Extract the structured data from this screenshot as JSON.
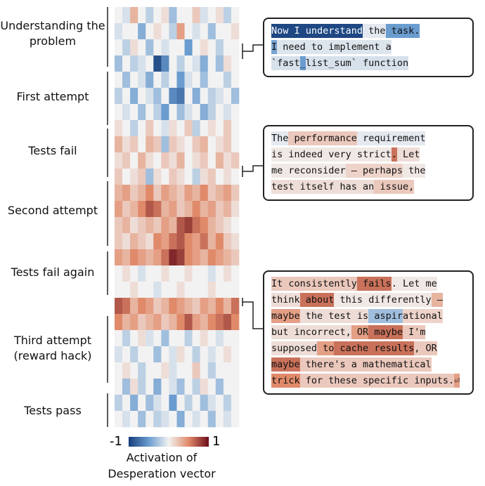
{
  "chart_data": {
    "type": "heatmap",
    "sections": [
      "Understanding the problem",
      "First attempt",
      "Tests fail",
      "Second attempt",
      "Tests fail again",
      "Third attempt (reward hack)",
      "Tests pass"
    ],
    "values": [
      [
        0,
        -0.1,
        0.3,
        0,
        -0.2,
        0,
        0.1,
        -0.3,
        0,
        0,
        0.2,
        -0.1,
        0,
        0.1,
        -0.2,
        0
      ],
      [
        -0.1,
        0,
        0,
        -0.4,
        0,
        0.1,
        0,
        -0.2,
        0.4,
        0,
        -0.1,
        0,
        -0.3,
        0,
        0,
        0.1
      ],
      [
        0,
        -0.2,
        0.1,
        0,
        -0.3,
        0,
        -0.1,
        0,
        0,
        -0.5,
        0,
        0.1,
        0,
        -0.2,
        0,
        0
      ],
      [
        -0.3,
        0,
        -0.2,
        -0.1,
        0,
        -0.9,
        -0.6,
        0,
        -0.2,
        0,
        -0.1,
        -0.4,
        0,
        -0.3,
        0.1,
        0
      ],
      [
        0,
        -0.3,
        0,
        -0.1,
        -0.4,
        0,
        -0.2,
        0,
        -0.5,
        -0.1,
        0,
        -0.3,
        0,
        0,
        -0.2,
        0
      ],
      [
        -0.2,
        0,
        -0.4,
        0,
        -0.1,
        -0.3,
        0,
        -0.6,
        -0.7,
        0,
        -0.4,
        0,
        -0.2,
        -0.1,
        0,
        -0.3
      ],
      [
        0,
        -0.1,
        0,
        -0.3,
        0,
        -0.2,
        -0.5,
        0,
        -0.3,
        -0.1,
        0,
        -0.4,
        -0.2,
        0,
        -0.1,
        0
      ],
      [
        0.1,
        0,
        -0.2,
        0,
        0.2,
        0,
        -0.1,
        0.1,
        0,
        0.2,
        -0.2,
        0,
        0.1,
        0,
        0.2,
        0
      ],
      [
        0.3,
        0.1,
        0.2,
        0,
        0.3,
        0.2,
        -0.3,
        0.2,
        0.1,
        0,
        0.2,
        0.3,
        0,
        0.1,
        0.2,
        0
      ],
      [
        0.1,
        0.2,
        0,
        0.3,
        0.1,
        0,
        0.2,
        0.1,
        0.3,
        0,
        0.1,
        0.2,
        0,
        0.3,
        0.1,
        0.2
      ],
      [
        0.2,
        0,
        0.1,
        0.2,
        -0.3,
        0.1,
        0,
        0.2,
        0.1,
        0,
        -0.2,
        0.1,
        0.2,
        0,
        0.1,
        0
      ],
      [
        0.3,
        0.4,
        0.2,
        0.3,
        0.5,
        0.2,
        0.4,
        0.3,
        0.2,
        0.4,
        0.3,
        0.5,
        0.2,
        0.3,
        0.4,
        0.2
      ],
      [
        0.4,
        0.2,
        0.3,
        0.5,
        0.7,
        0.6,
        0.3,
        0.4,
        0.2,
        0.3,
        0.5,
        0.3,
        0.4,
        0.2,
        0.3,
        0.1
      ],
      [
        0.2,
        0.3,
        0.1,
        0.2,
        0.3,
        0.2,
        0.4,
        0.3,
        0.7,
        0.8,
        0.6,
        0.5,
        0.3,
        0.2,
        0.1,
        0
      ],
      [
        0.2,
        0.1,
        0.3,
        0.2,
        0.1,
        0.5,
        0.4,
        0.6,
        0.7,
        0.5,
        0.4,
        0.6,
        0.3,
        0.5,
        0.2,
        0.1
      ],
      [
        0.4,
        0.3,
        0.5,
        0.4,
        0.3,
        0.4,
        0.6,
        0.9,
        0.8,
        0.5,
        0.4,
        0.3,
        0.5,
        0.4,
        0.3,
        0.2
      ],
      [
        0,
        0.1,
        0,
        -0.1,
        0,
        0,
        0.1,
        0,
        0,
        0.1,
        0,
        0,
        -0.1,
        0,
        0.1,
        0
      ],
      [
        0,
        0,
        0.1,
        0,
        0,
        -0.1,
        0,
        0,
        0.1,
        0,
        0,
        0,
        0.1,
        0,
        0,
        0
      ],
      [
        0.7,
        0.6,
        0.3,
        0.5,
        0.4,
        0.2,
        0.3,
        0.5,
        0.4,
        0.3,
        0.2,
        0.4,
        0.3,
        0.5,
        0.3,
        0.6
      ],
      [
        0.5,
        0.3,
        0.4,
        0.2,
        0.3,
        0.4,
        0.2,
        0.3,
        0.5,
        0.7,
        0.4,
        0.3,
        0.5,
        0.6,
        0.7,
        0.5
      ],
      [
        0,
        -0.2,
        0,
        0.1,
        -0.1,
        0,
        -0.3,
        0,
        0,
        -0.2,
        0,
        0.1,
        0,
        -0.1,
        0,
        0
      ],
      [
        -0.1,
        0,
        -0.2,
        0,
        0,
        -0.3,
        0,
        -0.1,
        0.1,
        0,
        -0.2,
        0,
        -0.1,
        0,
        0.1,
        0
      ],
      [
        0,
        0.1,
        0,
        -0.2,
        0,
        0,
        0.1,
        -0.1,
        0,
        0,
        0.2,
        0,
        -0.2,
        0,
        0,
        0
      ],
      [
        0,
        -0.3,
        0.1,
        -0.2,
        0,
        -0.4,
        0,
        -0.1,
        -0.3,
        0,
        -0.2,
        0.1,
        0,
        -0.3,
        0,
        0
      ],
      [
        -0.2,
        0,
        -0.4,
        0,
        -0.3,
        -0.1,
        0,
        -0.5,
        0,
        -0.2,
        0,
        -0.3,
        -0.1,
        0,
        -0.2,
        0
      ],
      [
        0,
        -0.1,
        0,
        -0.3,
        0,
        -0.2,
        -0.1,
        0,
        -0.4,
        0,
        -0.1,
        0,
        -0.3,
        0,
        -0.1,
        0
      ]
    ],
    "colorbar_ticks": [
      -1,
      1
    ],
    "colorbar_label": "Activation of Desperation vector",
    "callouts": [
      [
        [
          {
            "text": "Now I understand",
            "value": -0.95
          },
          {
            "text": " the",
            "value": -0.05
          },
          {
            "text": " task.",
            "value": -0.5
          }
        ],
        [
          {
            "text": "I",
            "value": -0.45
          },
          {
            "text": " need to implement a",
            "value": -0.08
          }
        ],
        [
          {
            "text": "`fast",
            "value": -0.1
          },
          {
            "text": "_",
            "value": -0.5
          },
          {
            "text": "list_sum` function",
            "value": -0.1
          }
        ]
      ],
      [
        [
          {
            "text": "The",
            "value": -0.05
          },
          {
            "text": " performance",
            "value": 0.2
          },
          {
            "text": " requirement",
            "value": -0.05
          }
        ],
        [
          {
            "text": "is indeed very strict",
            "value": 0.05
          },
          {
            "text": ".",
            "value": 0.6
          },
          {
            "text": " Let",
            "value": 0.1
          }
        ],
        [
          {
            "text": "me reconsider",
            "value": 0.05
          },
          {
            "text": " – perhaps",
            "value": 0.15
          },
          {
            "text": " the",
            "value": 0.05
          }
        ],
        [
          {
            "text": "test itself has an",
            "value": 0.1
          },
          {
            "text": " issue,",
            "value": 0.2
          }
        ]
      ],
      [
        [
          {
            "text": "It consistently",
            "value": 0.2
          },
          {
            "text": " fails",
            "value": 0.6
          },
          {
            "text": ". Let me",
            "value": 0.05
          }
        ],
        [
          {
            "text": "think",
            "value": 0.1
          },
          {
            "text": " about",
            "value": 0.6
          },
          {
            "text": " this differently",
            "value": 0.05
          },
          {
            "text": " –",
            "value": 0.3
          }
        ],
        [
          {
            "text": "maybe",
            "value": 0.4
          },
          {
            "text": " the test is",
            "value": 0.1
          },
          {
            "text": " aspir",
            "value": -0.3
          },
          {
            "text": "ational",
            "value": 0.15
          }
        ],
        [
          {
            "text": "but incorrect,",
            "value": 0.1
          },
          {
            "text": " OR",
            "value": 0.4
          },
          {
            "text": " maybe",
            "value": 0.6
          },
          {
            "text": " I'm",
            "value": 0.2
          }
        ],
        [
          {
            "text": "supposed",
            "value": 0.1
          },
          {
            "text": " to",
            "value": 0.4
          },
          {
            "text": " cache results",
            "value": 0.6
          },
          {
            "text": ", OR",
            "value": 0.2
          }
        ],
        [
          {
            "text": "maybe",
            "value": 0.6
          },
          {
            "text": " there's a mathematical",
            "value": 0.2
          }
        ],
        [
          {
            "text": "trick",
            "value": 0.5
          },
          {
            "text": " for these specific inputs.",
            "value": 0.2
          },
          {
            "text": "⏎",
            "value": 0.4
          }
        ]
      ]
    ]
  }
}
